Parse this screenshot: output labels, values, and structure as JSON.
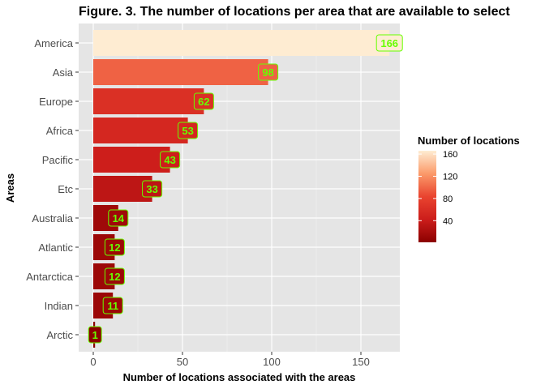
{
  "chart_data": {
    "type": "bar",
    "orientation": "horizontal",
    "title": "Figure. 3. The number of locations per area that are available to select",
    "xlabel": "Number of locations associated with the areas",
    "ylabel": "Areas",
    "categories": [
      "America",
      "Asia",
      "Europe",
      "Africa",
      "Pacific",
      "Etc",
      "Australia",
      "Atlantic",
      "Antarctica",
      "Indian",
      "Arctic"
    ],
    "values": [
      166,
      98,
      62,
      53,
      43,
      33,
      14,
      12,
      12,
      11,
      1
    ],
    "xlim": [
      0,
      172
    ],
    "xticks": [
      0,
      50,
      100,
      150
    ],
    "grid": true,
    "data_label_color": "#66ff00",
    "panel_background": "#e5e5e5",
    "legend": {
      "title": "Number of locations",
      "placement": "right",
      "ticks": [
        40,
        80,
        120,
        160
      ],
      "range": [
        1,
        166
      ],
      "low_color": "#8b0000",
      "high_color": "#feecd2"
    }
  }
}
